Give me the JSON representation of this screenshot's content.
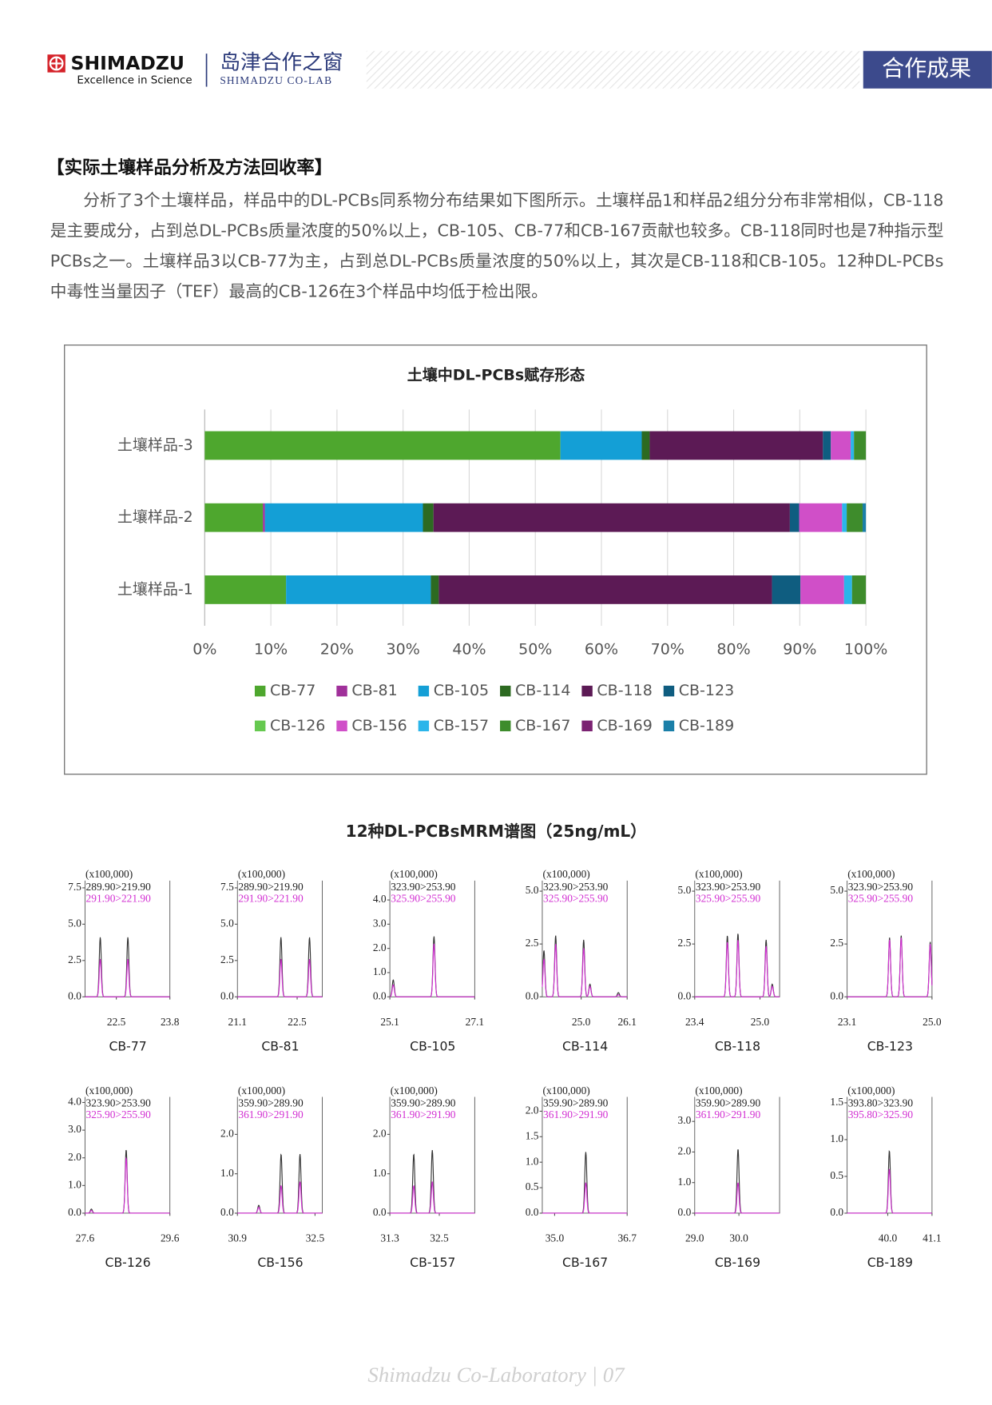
{
  "header": {
    "brand": "SHIMADZU",
    "slogan": "Excellence in Science",
    "column": "岛津合作之窗",
    "column_en": "SHIMADZU CO-LAB",
    "tag": "合作成果"
  },
  "section_title": "【实际土壤样品分析及方法回收率】",
  "paragraph": "分析了3个土壤样品，样品中的DL-PCBs同系物分布结果如下图所示。土壤样品1和样品2组分分布非常相似，CB-118是主要成分，占到总DL-PCBs质量浓度的50%以上，CB-105、CB-77和CB-167贡献也较多。CB-118同时也是7种指示型PCBs之一。土壤样品3以CB-77为主，占到总DL-PCBs质量浓度的50%以上，其次是CB-118和CB-105。12种DL-PCBs中毒性当量因子（TEF）最高的CB-126在3个样品中均低于检出限。",
  "chart_data": {
    "type": "bar",
    "orientation": "horizontal",
    "stacked": true,
    "title": "土壤中DL-PCBs赋存形态",
    "categories": [
      "土壤样品-1",
      "土壤样品-2",
      "土壤样品-3"
    ],
    "series": [
      {
        "name": "CB-77",
        "color": "#4ea72e",
        "values": [
          12.3,
          8.8,
          53.8
        ]
      },
      {
        "name": "CB-81",
        "color": "#a0309a",
        "values": [
          0,
          0.3,
          0
        ]
      },
      {
        "name": "CB-105",
        "color": "#149fd6",
        "values": [
          21.9,
          23.9,
          12.3
        ]
      },
      {
        "name": "CB-114",
        "color": "#2d6a21",
        "values": [
          1.2,
          1.6,
          1.2
        ]
      },
      {
        "name": "CB-118",
        "color": "#5c1a55",
        "values": [
          50.4,
          53.9,
          26.2
        ]
      },
      {
        "name": "CB-123",
        "color": "#0f5d80",
        "values": [
          4.3,
          1.4,
          1.2
        ]
      },
      {
        "name": "CB-126",
        "color": "#66c950",
        "values": [
          0,
          0,
          0
        ]
      },
      {
        "name": "CB-156",
        "color": "#d04fc8",
        "values": [
          6.6,
          6.5,
          3.0
        ]
      },
      {
        "name": "CB-157",
        "color": "#2bb5ea",
        "values": [
          1.2,
          0.7,
          0.5
        ]
      },
      {
        "name": "CB-167",
        "color": "#3e8c2c",
        "values": [
          2.1,
          2.4,
          1.8
        ]
      },
      {
        "name": "CB-169",
        "color": "#7b2272",
        "values": [
          0,
          0,
          0
        ]
      },
      {
        "name": "CB-189",
        "color": "#1a7fa8",
        "values": [
          0,
          0.5,
          0
        ]
      }
    ],
    "xlim": [
      0,
      100
    ],
    "xticks": [
      {
        "value": 0,
        "label": "0%"
      },
      {
        "value": 10,
        "label": "10%"
      },
      {
        "value": 20,
        "label": "20%"
      },
      {
        "value": 30,
        "label": "30%"
      },
      {
        "value": 40,
        "label": "40%"
      },
      {
        "value": 50,
        "label": "50%"
      },
      {
        "value": 60,
        "label": "60%"
      },
      {
        "value": 70,
        "label": "70%"
      },
      {
        "value": 80,
        "label": "80%"
      },
      {
        "value": 90,
        "label": "90%"
      },
      {
        "value": 100,
        "label": "100%"
      }
    ],
    "grid": true
  },
  "chromatograms": {
    "title": "12种DL-PCBsMRM谱图（25ng/mL）",
    "panels": [
      {
        "name": "CB-77",
        "scale": "(x100,000)",
        "transitions": [
          "289.90>219.90",
          "291.90>221.90"
        ],
        "xlim": [
          21.74,
          23.8
        ],
        "xticks": [
          22.5,
          23.8
        ],
        "ylim": [
          0,
          8.0
        ],
        "yticks": [
          {
            "value": 0,
            "label": "0.0"
          },
          2.5,
          {
            "value": 5,
            "label": "5.0"
          },
          7.5
        ],
        "peaks": [
          [
            22.11,
            4.1,
            2.6
          ],
          [
            22.78,
            4.1,
            2.6
          ]
        ]
      },
      {
        "name": "CB-81",
        "scale": "(x100,000)",
        "transitions": [
          "289.90>219.90",
          "291.90>221.90"
        ],
        "xlim": [
          21.1,
          23.09
        ],
        "xticks": [
          21.1,
          22.5
        ],
        "ylim": [
          0,
          8.0
        ],
        "yticks": [
          {
            "value": 0,
            "label": "0.0"
          },
          2.5,
          {
            "value": 5,
            "label": "5.0"
          },
          7.5
        ],
        "peaks": [
          [
            22.12,
            4.1,
            2.6
          ],
          [
            22.79,
            4.1,
            2.6
          ]
        ]
      },
      {
        "name": "CB-105",
        "scale": "(x100,000)",
        "transitions": [
          "323.90>253.90",
          "325.90>255.90"
        ],
        "xlim": [
          25.1,
          27.1
        ],
        "xticks": [
          25.1,
          27.1
        ],
        "ylim": [
          0,
          4.8
        ],
        "yticks": [
          {
            "value": 0,
            "label": "0.0"
          },
          {
            "value": 1,
            "label": "1.0"
          },
          {
            "value": 2,
            "label": "2.0"
          },
          {
            "value": 3,
            "label": "3.0"
          },
          {
            "value": 4,
            "label": "4.0"
          }
        ],
        "peaks": [
          [
            25.18,
            0.7,
            0.5
          ],
          [
            26.14,
            2.5,
            2.2
          ]
        ]
      },
      {
        "name": "CB-114",
        "scale": "(x100,000)",
        "transitions": [
          "323.90>253.90",
          "325.90>255.90"
        ],
        "xlim": [
          24.07,
          26.1
        ],
        "xticks": [
          {
            "value": 25,
            "label": "25.0"
          },
          26.1
        ],
        "ylim": [
          0,
          5.5
        ],
        "yticks": [
          {
            "value": 0,
            "label": "0.0"
          },
          2.5,
          {
            "value": 5,
            "label": "5.0"
          }
        ],
        "peaks": [
          [
            24.11,
            2.2,
            1.8
          ],
          [
            24.39,
            2.9,
            2.5
          ],
          [
            25.06,
            2.7,
            2.3
          ],
          [
            25.21,
            0.6,
            0.5
          ],
          [
            25.89,
            0.2,
            0.1
          ]
        ]
      },
      {
        "name": "CB-118",
        "scale": "(x100,000)",
        "transitions": [
          "323.90>253.90",
          "325.90>255.90"
        ],
        "xlim": [
          23.4,
          25.48
        ],
        "xticks": [
          23.4,
          {
            "value": 25,
            "label": "25.0"
          }
        ],
        "ylim": [
          0,
          5.5
        ],
        "yticks": [
          {
            "value": 0,
            "label": "0.0"
          },
          2.5,
          {
            "value": 5,
            "label": "5.0"
          }
        ],
        "peaks": [
          [
            24.2,
            2.9,
            2.6
          ],
          [
            24.46,
            3.0,
            2.7
          ],
          [
            25.15,
            2.7,
            2.4
          ],
          [
            25.3,
            0.6,
            0.5
          ]
        ]
      },
      {
        "name": "CB-123",
        "scale": "(x100,000)",
        "transitions": [
          "323.90>253.90",
          "325.90>255.90"
        ],
        "xlim": [
          23.1,
          25.0
        ],
        "xticks": [
          23.1,
          {
            "value": 25,
            "label": "25.0"
          }
        ],
        "ylim": [
          0,
          5.5
        ],
        "yticks": [
          {
            "value": 0,
            "label": "0.0"
          },
          2.5,
          {
            "value": 5,
            "label": "5.0"
          }
        ],
        "peaks": [
          [
            24.05,
            2.8,
            2.7
          ],
          [
            24.31,
            2.9,
            2.8
          ],
          [
            24.96,
            2.6,
            2.5
          ]
        ]
      },
      {
        "name": "CB-126",
        "scale": "(x100,000)",
        "transitions": [
          "323.90>253.90",
          "325.90>255.90"
        ],
        "xlim": [
          27.6,
          29.6
        ],
        "xticks": [
          27.6,
          29.6
        ],
        "ylim": [
          0,
          4.2
        ],
        "yticks": [
          {
            "value": 0,
            "label": "0.0"
          },
          {
            "value": 1,
            "label": "1.0"
          },
          {
            "value": 2,
            "label": "2.0"
          },
          {
            "value": 3,
            "label": "3.0"
          },
          {
            "value": 4,
            "label": "4.0"
          }
        ],
        "peaks": [
          [
            27.75,
            0.15,
            0.1
          ],
          [
            28.57,
            2.3,
            2.0
          ]
        ]
      },
      {
        "name": "CB-156",
        "scale": "(x100,000)",
        "transitions": [
          "359.90>289.90",
          "361.90>291.90"
        ],
        "xlim": [
          30.9,
          32.65
        ],
        "xticks": [
          30.9,
          32.5
        ],
        "ylim": [
          0,
          2.95
        ],
        "yticks": [
          {
            "value": 0,
            "label": "0.0"
          },
          {
            "value": 1,
            "label": "1.0"
          },
          {
            "value": 2,
            "label": "2.0"
          }
        ],
        "peaks": [
          [
            31.34,
            0.2,
            0.15
          ],
          [
            31.8,
            1.5,
            0.7
          ],
          [
            32.19,
            1.5,
            0.8
          ]
        ]
      },
      {
        "name": "CB-157",
        "scale": "(x100,000)",
        "transitions": [
          "359.90>289.90",
          "361.90>291.90"
        ],
        "xlim": [
          31.3,
          33.36
        ],
        "xticks": [
          31.3,
          32.5
        ],
        "ylim": [
          0,
          2.95
        ],
        "yticks": [
          {
            "value": 0,
            "label": "0.0"
          },
          {
            "value": 1,
            "label": "1.0"
          },
          {
            "value": 2,
            "label": "2.0"
          }
        ],
        "peaks": [
          [
            31.88,
            1.5,
            0.7
          ],
          [
            32.33,
            1.6,
            0.8
          ]
        ]
      },
      {
        "name": "CB-167",
        "scale": "(x100,000)",
        "transitions": [
          "359.90>289.90",
          "361.90>291.90"
        ],
        "xlim": [
          34.71,
          36.7
        ],
        "xticks": [
          {
            "value": 35,
            "label": "35.0"
          },
          36.7
        ],
        "ylim": [
          0,
          2.28
        ],
        "yticks": [
          {
            "value": 0,
            "label": "0.0"
          },
          0.5,
          {
            "value": 1,
            "label": "1.0"
          },
          1.5,
          {
            "value": 2,
            "label": "2.0"
          }
        ],
        "peaks": [
          [
            35.73,
            1.2,
            0.6
          ]
        ]
      },
      {
        "name": "CB-169",
        "scale": "(x100,000)",
        "transitions": [
          "359.90>289.90",
          "361.90>291.90"
        ],
        "xlim": [
          29.0,
          30.92
        ],
        "xticks": [
          {
            "value": 29,
            "label": "29.0"
          },
          {
            "value": 30,
            "label": "30.0"
          }
        ],
        "ylim": [
          0,
          3.8
        ],
        "yticks": [
          {
            "value": 0,
            "label": "0.0"
          },
          {
            "value": 1,
            "label": "1.0"
          },
          {
            "value": 2,
            "label": "2.0"
          },
          {
            "value": 3,
            "label": "3.0"
          }
        ],
        "peaks": [
          [
            29.98,
            2.1,
            1.0
          ]
        ]
      },
      {
        "name": "CB-189",
        "scale": "(x100,000)",
        "transitions": [
          "393.80>323.90",
          "395.80>325.90"
        ],
        "xlim": [
          38.99,
          41.1
        ],
        "xticks": [
          {
            "value": 40,
            "label": "40.0"
          },
          41.1
        ],
        "ylim": [
          0,
          1.58
        ],
        "yticks": [
          {
            "value": 0,
            "label": "0.0"
          },
          0.5,
          {
            "value": 1,
            "label": "1.0"
          },
          1.5
        ],
        "peaks": [
          [
            40.04,
            0.85,
            0.6
          ]
        ]
      }
    ]
  },
  "footer": "Shimadzu Co-Laboratory | 07"
}
